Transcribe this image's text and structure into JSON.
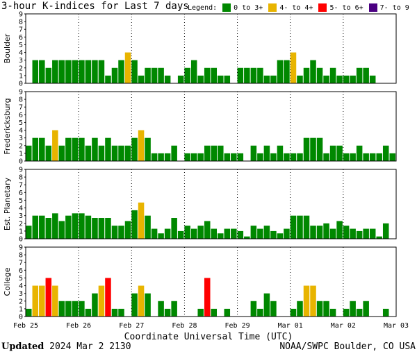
{
  "title": "3-hour K-indices for Last 7 days",
  "legend": {
    "label": "Legend:",
    "items": [
      {
        "label": "0 to 3+",
        "color": "#008800"
      },
      {
        "label": "4- to 4+",
        "color": "#e8b400"
      },
      {
        "label": "5- to 6+",
        "color": "#ff0000"
      },
      {
        "label": "7- to 9",
        "color": "#4b0082"
      }
    ]
  },
  "footer": {
    "updated_label": "Updated",
    "updated_value": "2024 Mar  2 2130",
    "credit": "NOAA/SWPC Boulder, CO USA"
  },
  "chart_data": {
    "type": "bar",
    "xlabel": "Coordinate Universal Time (UTC)",
    "x_ticks": [
      "Feb 25",
      "Feb 26",
      "Feb 27",
      "Feb 28",
      "Feb 29",
      "Mar 01",
      "Mar 02",
      "Mar 03"
    ],
    "ylim": [
      0,
      9
    ],
    "y_ticks": [
      0,
      1,
      2,
      3,
      4,
      5,
      6,
      7,
      8,
      9
    ],
    "grid": "dotted",
    "panels": [
      {
        "name": "Boulder",
        "values": [
          0,
          3,
          3,
          2,
          3,
          3,
          3,
          3,
          3,
          3,
          3,
          3,
          1,
          2,
          3,
          4,
          3,
          1,
          2,
          2,
          2,
          1,
          0,
          1,
          2,
          3,
          1,
          2,
          2,
          1,
          1,
          0,
          2,
          2,
          2,
          2,
          1,
          1,
          3,
          3,
          4,
          1,
          2,
          3,
          2,
          1,
          2,
          1,
          1,
          1,
          2,
          2,
          1,
          0
        ]
      },
      {
        "name": "Fredericksburg",
        "values": [
          2,
          3,
          3,
          2,
          4,
          2,
          3,
          3,
          3,
          2,
          3,
          2,
          3,
          2,
          2,
          2,
          3,
          4,
          3,
          1,
          1,
          1,
          2,
          0,
          1,
          1,
          1,
          2,
          2,
          2,
          1,
          1,
          1,
          0,
          2,
          1,
          2,
          1,
          2,
          1,
          1,
          1,
          3,
          3,
          3,
          1,
          2,
          2,
          1,
          1,
          2,
          1,
          1,
          1,
          2,
          1,
          0,
          0
        ]
      },
      {
        "name": "Est. Planetary",
        "values": [
          1.7,
          3,
          3,
          2.7,
          3.3,
          2.3,
          3,
          3.3,
          3.3,
          3,
          2.7,
          2.7,
          2.7,
          1.7,
          1.7,
          2.3,
          3.7,
          4.7,
          3,
          1.3,
          0.7,
          1.3,
          2.7,
          1,
          1.7,
          1.3,
          1.7,
          2.3,
          1.3,
          0.7,
          1.3,
          1.3,
          1,
          0.3,
          1.7,
          1.3,
          1.7,
          1,
          0.7,
          1.3,
          3,
          3,
          3,
          1.7,
          1.7,
          2,
          1.3,
          2.3,
          1.7,
          1.3,
          1,
          1.3,
          1.3,
          0.3,
          2
        ]
      },
      {
        "name": "College",
        "values": [
          1,
          4,
          4,
          5,
          4,
          2,
          2,
          2,
          2,
          1,
          3,
          4,
          5,
          1,
          1,
          0,
          3,
          4,
          3,
          0,
          2,
          1,
          2,
          0,
          0,
          0,
          1,
          5,
          1,
          0,
          1,
          0,
          0,
          0,
          2,
          1,
          3,
          2,
          0,
          0,
          1,
          2,
          4,
          4,
          2,
          2,
          1,
          0,
          1,
          2,
          1,
          2,
          0,
          0,
          1,
          0
        ]
      }
    ]
  }
}
